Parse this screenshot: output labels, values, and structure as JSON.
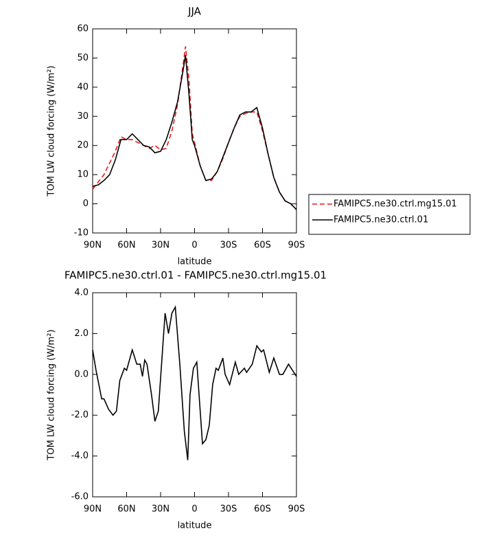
{
  "chart_data": [
    {
      "type": "line",
      "title": "JJA",
      "x_label": "latitude",
      "y_label": "TOM LW cloud forcing (W/m²)",
      "xlim": [
        90,
        -90
      ],
      "ylim": [
        -10,
        60
      ],
      "xticks": [
        {
          "value": 90,
          "label": "90N"
        },
        {
          "value": 60,
          "label": "60N"
        },
        {
          "value": 30,
          "label": "30N"
        },
        0,
        {
          "value": -30,
          "label": "30S"
        },
        {
          "value": -60,
          "label": "60S"
        },
        {
          "value": -90,
          "label": "90S"
        }
      ],
      "yticks": [
        -10,
        0,
        10,
        20,
        30,
        40,
        50,
        60
      ],
      "legend": "right",
      "x": [
        90,
        85,
        80,
        75,
        70,
        65,
        60,
        55,
        50,
        45,
        40,
        35,
        30,
        25,
        20,
        15,
        10,
        8,
        5,
        2,
        0,
        -5,
        -10,
        -15,
        -20,
        -25,
        -30,
        -35,
        -40,
        -45,
        -50,
        -55,
        -60,
        -65,
        -70,
        -75,
        -80,
        -85,
        -90
      ],
      "series": [
        {
          "name": "FAMIPC5.ne30.ctrl.mg15.01",
          "color": "#e41a1c",
          "line_style": "dashed",
          "values": [
            5,
            7.5,
            10,
            14,
            18,
            23,
            22,
            22,
            21,
            20,
            19,
            20,
            18.5,
            19,
            25,
            34,
            48,
            54,
            43,
            24,
            21,
            13,
            8,
            8,
            11,
            15.5,
            21,
            26,
            30,
            31,
            31.5,
            31.5,
            25,
            17,
            9,
            4,
            1,
            0,
            -2
          ]
        },
        {
          "name": "FAMIPC5.ne30.ctrl.01",
          "color": "#000000",
          "line_style": "solid",
          "values": [
            6,
            6.5,
            8,
            10,
            15,
            22,
            22,
            24,
            22,
            20,
            19.5,
            17.5,
            18,
            22,
            28,
            35,
            46,
            51,
            38,
            22,
            20,
            13,
            8,
            8.5,
            11,
            16,
            21,
            26,
            30.5,
            31.5,
            31.5,
            33,
            26,
            17,
            9,
            4,
            1,
            0,
            -2
          ]
        }
      ]
    },
    {
      "type": "line",
      "title": "FAMIPC5.ne30.ctrl.01 - FAMIPC5.ne30.ctrl.mg15.01",
      "x_label": "latitude",
      "y_label": "TOM LW cloud forcing (W/m²)",
      "xlim": [
        90,
        -90
      ],
      "ylim": [
        -6,
        4
      ],
      "xticks": [
        {
          "value": 90,
          "label": "90N"
        },
        {
          "value": 60,
          "label": "60N"
        },
        {
          "value": 30,
          "label": "30N"
        },
        0,
        {
          "value": -30,
          "label": "30S"
        },
        {
          "value": -60,
          "label": "60S"
        },
        {
          "value": -90,
          "label": "90S"
        }
      ],
      "yticks": [
        {
          "value": -6,
          "label": "-6.0"
        },
        {
          "value": -4,
          "label": "-4.0"
        },
        {
          "value": -2,
          "label": "-2.0"
        },
        {
          "value": 0,
          "label": "0.0"
        },
        {
          "value": 2,
          "label": "2.0"
        },
        {
          "value": 4,
          "label": "4.0"
        }
      ],
      "x": [
        90,
        87,
        82,
        80,
        76,
        72,
        69,
        66,
        62,
        60,
        55,
        51,
        48,
        46,
        44,
        42,
        38,
        35,
        32,
        26,
        23,
        20,
        17,
        13,
        9,
        6,
        4,
        1,
        -2,
        -4,
        -7,
        -10,
        -13,
        -16,
        -19,
        -21,
        -25,
        -27,
        -31,
        -36,
        -39,
        -44,
        -46,
        -51,
        -55,
        -59,
        -61,
        -66,
        -70,
        -75,
        -78,
        -83,
        -90
      ],
      "series": [
        {
          "color": "#000000",
          "line_style": "solid",
          "values": [
            1.2,
            0.2,
            -1.2,
            -1.2,
            -1.7,
            -2.0,
            -1.8,
            -0.3,
            0.3,
            0.2,
            1.2,
            0.5,
            0.5,
            -0.1,
            0.7,
            0.5,
            -1.0,
            -2.3,
            -1.8,
            3.0,
            2.0,
            3.0,
            3.3,
            0.5,
            -2.8,
            -4.2,
            -1.0,
            0.3,
            0.6,
            -1.0,
            -3.4,
            -3.2,
            -2.5,
            -0.5,
            0.3,
            0.2,
            0.8,
            0.0,
            -0.5,
            0.6,
            0.0,
            0.3,
            0.1,
            0.5,
            1.4,
            1.1,
            1.2,
            0.1,
            0.8,
            0.0,
            0.0,
            0.5,
            -0.1
          ]
        }
      ]
    }
  ]
}
